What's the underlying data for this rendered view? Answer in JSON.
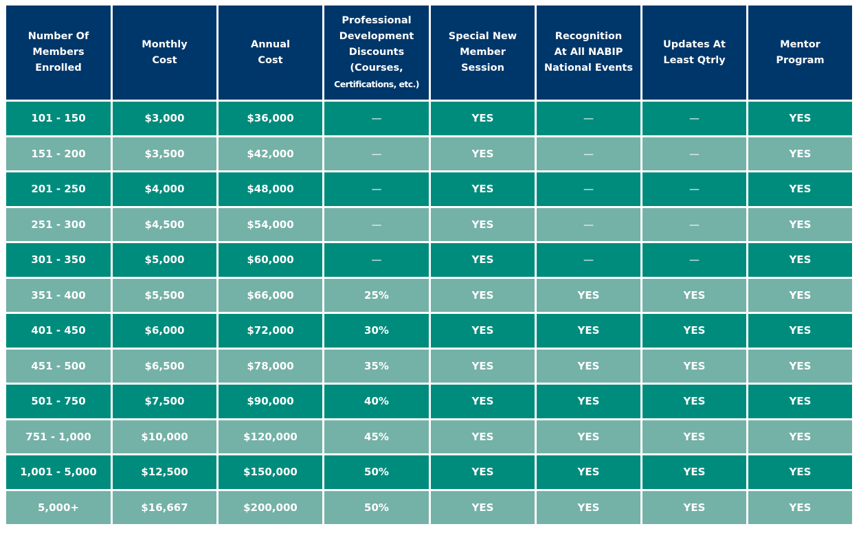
{
  "table": {
    "headers": [
      "Number Of\nMembers\nEnrolled",
      "Monthly\nCost",
      "Annual\nCost",
      "Professional\nDevelopment\nDiscounts\n(Courses,\nCertifications, etc.)",
      "Special New\nMember\nSession",
      "Recognition\nAt All NABIP\nNational Events",
      "Updates At\nLeast Qtrly",
      "Mentor\nProgram"
    ],
    "rows": [
      [
        "101 - 150",
        "$3,000",
        "$36,000",
        "—",
        "YES",
        "—",
        "—",
        "YES"
      ],
      [
        "151 - 200",
        "$3,500",
        "$42,000",
        "—",
        "YES",
        "—",
        "—",
        "YES"
      ],
      [
        "201 - 250",
        "$4,000",
        "$48,000",
        "—",
        "YES",
        "—",
        "—",
        "YES"
      ],
      [
        "251 - 300",
        "$4,500",
        "$54,000",
        "—",
        "YES",
        "—",
        "—",
        "YES"
      ],
      [
        "301 - 350",
        "$5,000",
        "$60,000",
        "—",
        "YES",
        "—",
        "—",
        "YES"
      ],
      [
        "351 - 400",
        "$5,500",
        "$66,000",
        "25%",
        "YES",
        "YES",
        "YES",
        "YES"
      ],
      [
        "401 - 450",
        "$6,000",
        "$72,000",
        "30%",
        "YES",
        "YES",
        "YES",
        "YES"
      ],
      [
        "451 - 500",
        "$6,500",
        "$78,000",
        "35%",
        "YES",
        "YES",
        "YES",
        "YES"
      ],
      [
        "501 - 750",
        "$7,500",
        "$90,000",
        "40%",
        "YES",
        "YES",
        "YES",
        "YES"
      ],
      [
        "751 - 1,000",
        "$10,000",
        "$120,000",
        "45%",
        "YES",
        "YES",
        "YES",
        "YES"
      ],
      [
        "1,001 - 5,000",
        "$12,500",
        "$150,000",
        "50%",
        "YES",
        "YES",
        "YES",
        "YES"
      ],
      [
        "5,000+",
        "$16,667",
        "$200,000",
        "50%",
        "YES",
        "YES",
        "YES",
        "YES"
      ]
    ]
  },
  "colors": {
    "header_bg": "#00376a",
    "row_dark": "#008c7c",
    "row_light": "#74b1a7",
    "text": "#ffffff"
  }
}
